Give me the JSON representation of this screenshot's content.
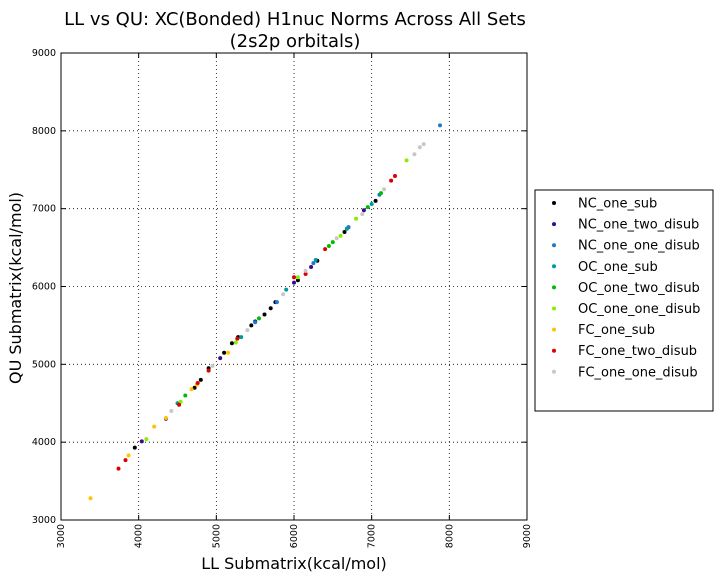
{
  "chart_data": {
    "type": "scatter",
    "title_lines": [
      "LL vs QU: XC(Bonded) H1nuc Norms Across All Sets",
      "(2s2p orbitals)"
    ],
    "xlabel": "LL Submatrix(kcal/mol)",
    "ylabel": "QU Submatrix(kcal/mol)",
    "xlim": [
      3000,
      9000
    ],
    "ylim": [
      3000,
      9000
    ],
    "xticks": [
      "3000",
      "4000",
      "5000",
      "6000",
      "7000",
      "8000",
      "9000"
    ],
    "yticks": [
      "3000",
      "4000",
      "5000",
      "6000",
      "7000",
      "8000",
      "9000"
    ],
    "grid": true,
    "legend_position": "right, outside axes",
    "series": [
      {
        "name": "NC_one_sub",
        "color": "#000000",
        "x": [
          3950,
          4720,
          4800,
          4900,
          5100,
          5200,
          5280,
          5450,
          5500,
          5620,
          5700,
          5760,
          6050,
          6300,
          6650,
          7050
        ],
        "y": [
          3930,
          4700,
          4800,
          4950,
          5150,
          5270,
          5350,
          5500,
          5550,
          5640,
          5720,
          5800,
          6080,
          6330,
          6700,
          7100
        ]
      },
      {
        "name": "NC_one_two_disub",
        "color": "#3a0a8c",
        "x": [
          4040,
          4350,
          5050,
          6000,
          6220,
          6700,
          6900
        ],
        "y": [
          4010,
          4300,
          5080,
          6050,
          6250,
          6760,
          6980
        ]
      },
      {
        "name": "NC_one_one_disub",
        "color": "#1e78d0",
        "x": [
          5500,
          5780,
          6250,
          6700,
          7100,
          7880
        ],
        "y": [
          5540,
          5800,
          6300,
          6760,
          7180,
          8070
        ]
      },
      {
        "name": "OC_one_sub",
        "color": "#009a9a",
        "x": [
          4500,
          5320,
          5900,
          6280,
          6680,
          7000
        ],
        "y": [
          4500,
          5350,
          5960,
          6340,
          6740,
          7060
        ]
      },
      {
        "name": "OC_one_two_disub",
        "color": "#00bb00",
        "x": [
          4600,
          5550,
          6450,
          6500,
          6950,
          7120
        ],
        "y": [
          4600,
          5590,
          6520,
          6570,
          7020,
          7200
        ]
      },
      {
        "name": "OC_one_one_disub",
        "color": "#88ee00",
        "x": [
          4100,
          4540,
          5250,
          6050,
          6600,
          6800,
          7450
        ],
        "y": [
          4040,
          4520,
          5280,
          6120,
          6650,
          6870,
          7620
        ]
      },
      {
        "name": "FC_one_sub",
        "color": "#ffc400",
        "x": [
          3380,
          3870,
          4200,
          4350,
          4680,
          4750,
          5150
        ],
        "y": [
          3280,
          3830,
          4200,
          4310,
          4680,
          4740,
          5150
        ]
      },
      {
        "name": "FC_one_two_disub",
        "color": "#dd0000",
        "x": [
          3740,
          3830,
          4520,
          4760,
          4900,
          5270,
          6000,
          6150,
          6400,
          7250,
          7300
        ],
        "y": [
          3660,
          3770,
          4480,
          4760,
          4920,
          5330,
          6120,
          6160,
          6480,
          7360,
          7420
        ]
      },
      {
        "name": "FC_one_one_disub",
        "color": "#c8c8c8",
        "x": [
          4420,
          4950,
          5400,
          5860,
          6150,
          6550,
          6880,
          7160,
          7550,
          7620,
          7670
        ],
        "y": [
          4400,
          4980,
          5440,
          5900,
          6200,
          6620,
          6930,
          7250,
          7700,
          7790,
          7830
        ]
      }
    ]
  }
}
